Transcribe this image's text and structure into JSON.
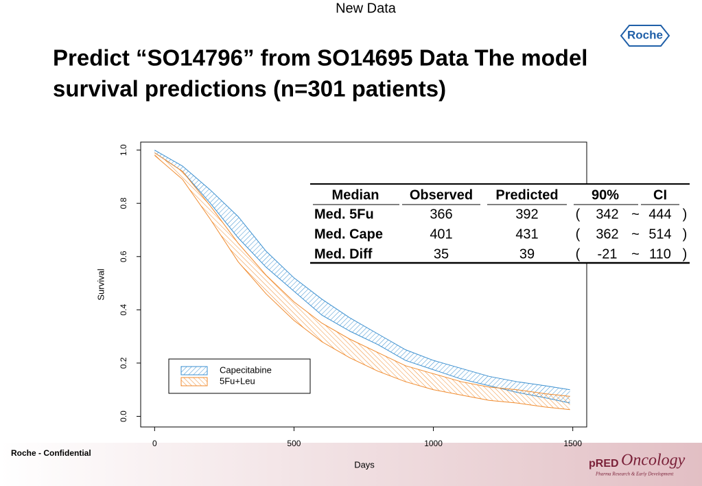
{
  "header": "New Data",
  "logo": "Roche",
  "title_lines": [
    "Predict “SO14796” from SO14695 Data The model",
    "survival predictions (n=301 patients)"
  ],
  "footer": {
    "confidential": "Roche - Confidential",
    "brand_prefix": "pRED",
    "brand": "Oncology",
    "brand_sub": "Pharma Research & Early Development"
  },
  "chart_data": {
    "type": "band",
    "xlabel": "Days",
    "ylabel": "Survival",
    "xlim": [
      -50,
      1550
    ],
    "ylim": [
      -0.04,
      1.03
    ],
    "xticks": [
      0,
      500,
      1000,
      1500
    ],
    "yticks": [
      {
        "value": 0,
        "label": "0.0"
      },
      0.2,
      0.4,
      0.6,
      0.8,
      {
        "value": 1,
        "label": "1.0"
      }
    ],
    "x": [
      0,
      100,
      200,
      300,
      400,
      500,
      600,
      700,
      800,
      900,
      1000,
      1100,
      1200,
      1300,
      1400,
      1490
    ],
    "series": [
      {
        "name": "Capecitabine",
        "color": "#3a8fd0",
        "upper": [
          1.0,
          0.94,
          0.85,
          0.75,
          0.62,
          0.52,
          0.44,
          0.37,
          0.31,
          0.25,
          0.21,
          0.18,
          0.15,
          0.13,
          0.115,
          0.1
        ],
        "lower": [
          0.99,
          0.92,
          0.8,
          0.67,
          0.56,
          0.47,
          0.38,
          0.32,
          0.27,
          0.21,
          0.175,
          0.14,
          0.115,
          0.09,
          0.07,
          0.05
        ]
      },
      {
        "name": "5Fu+Leu",
        "color": "#f08a2c",
        "upper": [
          0.99,
          0.92,
          0.79,
          0.65,
          0.53,
          0.43,
          0.35,
          0.29,
          0.24,
          0.19,
          0.16,
          0.13,
          0.11,
          0.1,
          0.085,
          0.075
        ],
        "lower": [
          0.98,
          0.89,
          0.74,
          0.58,
          0.46,
          0.36,
          0.28,
          0.22,
          0.17,
          0.13,
          0.1,
          0.08,
          0.06,
          0.05,
          0.035,
          0.025
        ]
      }
    ],
    "table": {
      "columns": [
        "Median",
        "Observed",
        "Predicted",
        "90%",
        "CI"
      ],
      "rows": [
        [
          "Med. 5Fu",
          "366",
          "392",
          "(",
          "342",
          "~",
          "444",
          ")"
        ],
        [
          "Med. Cape",
          "401",
          "431",
          "(",
          "362",
          "~",
          "514",
          ")"
        ],
        [
          "Med. Diff",
          "35",
          "39",
          "(",
          "-21",
          "~",
          "110",
          ")"
        ]
      ]
    }
  }
}
